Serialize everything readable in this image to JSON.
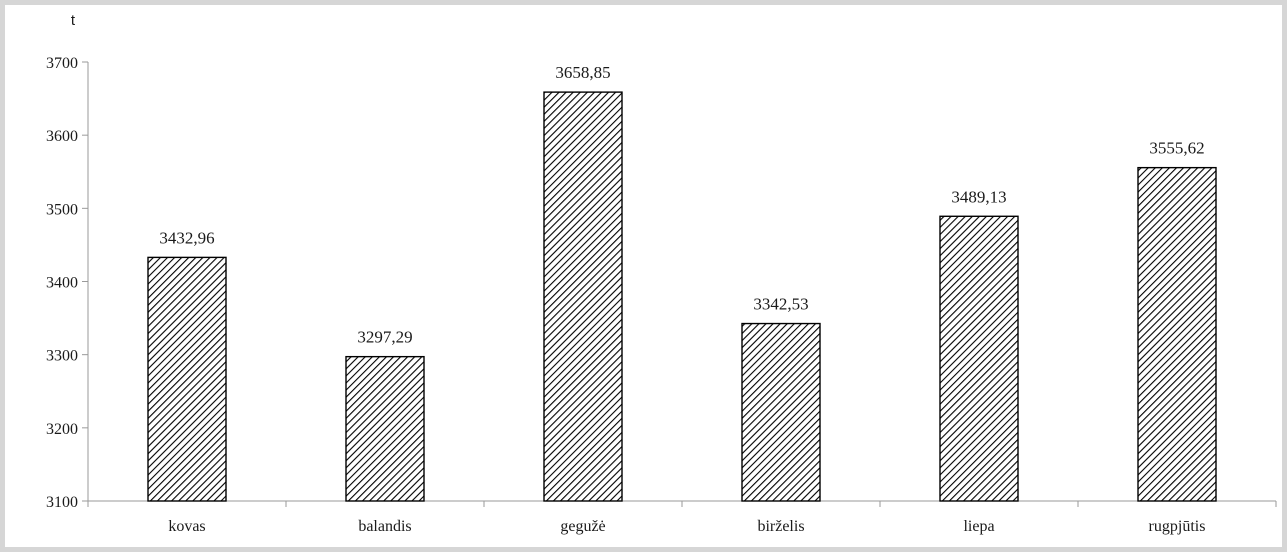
{
  "chart_data": {
    "type": "bar",
    "title": "",
    "xlabel": "",
    "ylabel": "t",
    "categories": [
      "kovas",
      "balandis",
      "gegužė",
      "birželis",
      "liepa",
      "rugpjūtis"
    ],
    "values": [
      3432.96,
      3297.29,
      3658.85,
      3342.53,
      3489.13,
      3555.62
    ],
    "value_labels": [
      "3432,96",
      "3297,29",
      "3658,85",
      "3342,53",
      "3489,13",
      "3555,62"
    ],
    "ylim": [
      3100,
      3700
    ],
    "yticks": [
      3100,
      3200,
      3300,
      3400,
      3500,
      3600,
      3700
    ],
    "grid": false,
    "legend": "none",
    "bar_fill": "hatched-diagonal",
    "colors": {
      "bar_outline": "#000000",
      "hatch": "#000000",
      "axis": "#9a9a9a",
      "frame": "#d6d6d6"
    }
  }
}
